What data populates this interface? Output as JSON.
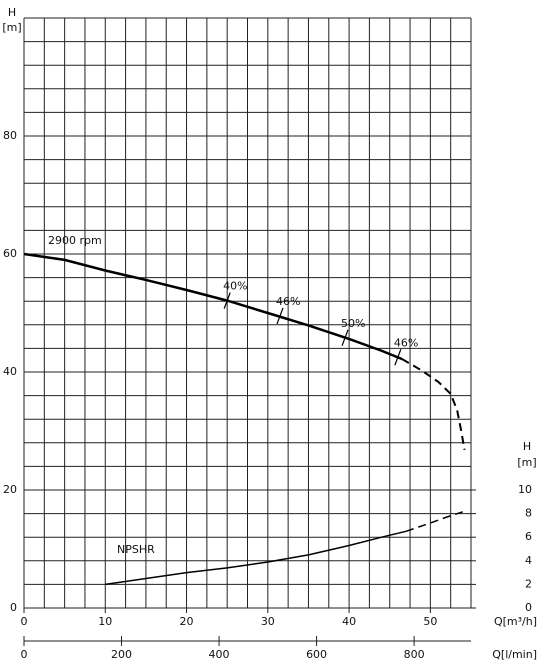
{
  "chart_data": {
    "type": "line",
    "left_axis_title": "H",
    "left_axis_unit": "[m]",
    "right_axis_title": "H",
    "right_axis_unit": "[m]",
    "x_label": "Q[m³/h]",
    "x2_label": "Q[l/min]",
    "speed_label": "2900 rpm",
    "npsh_label": "NPSHR",
    "xlim": [
      0,
      55
    ],
    "xticks": [
      0,
      10,
      20,
      30,
      40,
      50
    ],
    "xgrid": [
      0,
      2.5,
      5,
      7.5,
      10,
      12.5,
      15,
      17.5,
      20,
      22.5,
      25,
      27.5,
      30,
      32.5,
      35,
      37.5,
      40,
      42.5,
      45,
      47.5,
      50,
      52.5,
      55
    ],
    "x2lim": [
      0,
      916.7
    ],
    "x2ticks": [
      0,
      200,
      400,
      600,
      800
    ],
    "ylim": [
      0,
      100
    ],
    "yticks": [
      0,
      20,
      40,
      60,
      80
    ],
    "ygrid": [
      0,
      4,
      8,
      12,
      16,
      20,
      24,
      28,
      32,
      36,
      40,
      44,
      48,
      52,
      56,
      60,
      64,
      68,
      72,
      76,
      80,
      84,
      88,
      92,
      96,
      100
    ],
    "y2lim": [
      0,
      50
    ],
    "y2ticks": [
      0,
      2,
      4,
      6,
      8,
      10
    ],
    "series": [
      {
        "x": [
          0,
          5,
          10,
          15,
          20,
          25,
          30,
          35,
          40,
          44,
          46.5
        ],
        "values": [
          60,
          59,
          57.2,
          55.6,
          53.9,
          52.1,
          50,
          47.9,
          45.6,
          43.6,
          42.2
        ],
        "color": "#000000",
        "dash": false,
        "width": 2.5
      },
      {
        "x": [
          46.5,
          49,
          51,
          52.5,
          53.3,
          53.8,
          54.2
        ],
        "values": [
          42.2,
          40.2,
          38.3,
          36.3,
          33.5,
          30,
          26.8
        ],
        "color": "#000000",
        "dash": true,
        "width": 2
      },
      {
        "x": [
          10,
          15,
          20,
          25,
          30,
          35,
          40,
          44,
          47
        ],
        "values": [
          2,
          2.5,
          3,
          3.4,
          3.9,
          4.5,
          5.3,
          6,
          6.5
        ],
        "color": "#000000",
        "dash": false,
        "width": 1.5,
        "axis": "y2"
      },
      {
        "x": [
          47,
          50,
          52,
          54.2
        ],
        "values": [
          6.5,
          7.2,
          7.7,
          8.2
        ],
        "color": "#000000",
        "dash": true,
        "width": 1.5,
        "axis": "y2"
      }
    ],
    "efficiency": [
      {
        "label": "40%",
        "x": 25,
        "y": 52.1
      },
      {
        "label": "46%",
        "x": 31.5,
        "y": 49.5
      },
      {
        "label": "50%",
        "x": 39.5,
        "y": 45.8
      },
      {
        "label": "46%",
        "x": 46,
        "y": 42.5
      }
    ]
  }
}
